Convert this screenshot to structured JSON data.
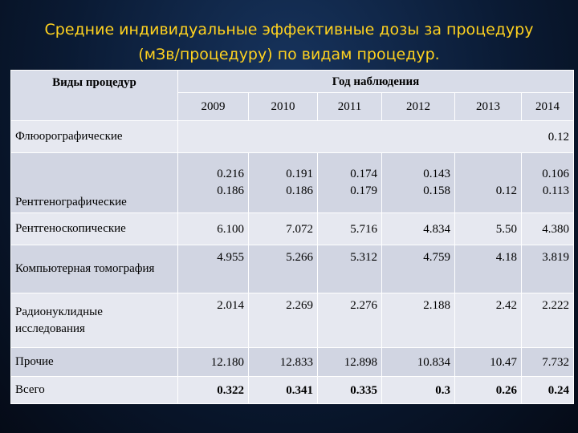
{
  "title": {
    "line1": "Средние индивидуальные эффективные дозы за процедуру",
    "line2": "(мЗв/процедуру) по видам процедур."
  },
  "table": {
    "procedure_header": "Виды процедур",
    "year_header": "Год наблюдения",
    "years": [
      "2009",
      "2010",
      "2011",
      "2012",
      "2013",
      "2014"
    ],
    "rows": [
      {
        "label": "Флюорографические",
        "merged_value": "0.12"
      },
      {
        "label": "Рентгенографические",
        "values": [
          {
            "a": "0.216",
            "b": "0.186"
          },
          {
            "a": "0.191",
            "b": "0.186"
          },
          {
            "a": "0.174",
            "b": "0.179"
          },
          {
            "a": "0.143",
            "b": "0.158"
          },
          {
            "a": "",
            "b": "0.12"
          },
          {
            "a": "0.106",
            "b": "0.113"
          }
        ]
      },
      {
        "label": "Рентгеноскопические",
        "values": [
          "6.100",
          "7.072",
          "5.716",
          "4.834",
          "5.50",
          "4.380"
        ]
      },
      {
        "label": "Компьютерная томография",
        "values": [
          "4.955",
          "5.266",
          "5.312",
          "4.759",
          "4.18",
          "3.819"
        ]
      },
      {
        "label": "Радионуклидные исследования",
        "values": [
          "2.014",
          "2.269",
          "2.276",
          "2.188",
          "2.42",
          "2.222"
        ]
      },
      {
        "label": "Прочие",
        "values": [
          "12.180",
          "12.833",
          "12.898",
          "10.834",
          "10.47",
          "7.732"
        ]
      },
      {
        "label": "Всего",
        "values": [
          "0.322",
          "0.341",
          "0.335",
          "0.3",
          "0.26",
          "0.24"
        ]
      }
    ]
  }
}
